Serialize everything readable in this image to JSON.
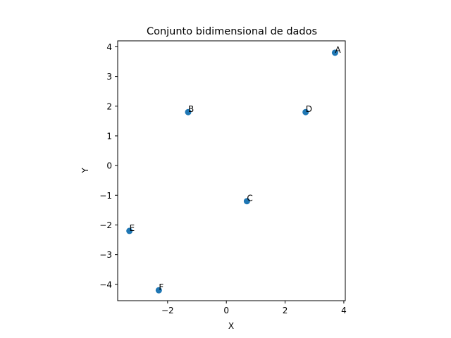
{
  "chart_data": {
    "type": "scatter",
    "title": "Conjunto bidimensional de dados",
    "xlabel": "X",
    "ylabel": "Y",
    "xlim": [
      -3.7,
      4.05
    ],
    "ylim": [
      -4.55,
      4.2
    ],
    "xticks": [
      -2,
      0,
      2,
      4
    ],
    "xtick_labels": [
      "−2",
      "0",
      "2",
      "4"
    ],
    "yticks": [
      -4,
      -3,
      -2,
      -1,
      0,
      1,
      2,
      3,
      4
    ],
    "ytick_labels": [
      "−4",
      "−3",
      "−2",
      "−1",
      "0",
      "1",
      "2",
      "3",
      "4"
    ],
    "grid": false,
    "marker_color": "#1f77b4",
    "points": [
      {
        "label": "A",
        "x": 3.7,
        "y": 3.8
      },
      {
        "label": "B",
        "x": -1.3,
        "y": 1.8
      },
      {
        "label": "C",
        "x": 0.7,
        "y": -1.2
      },
      {
        "label": "D",
        "x": 2.7,
        "y": 1.8
      },
      {
        "label": "E",
        "x": -3.3,
        "y": -2.2
      },
      {
        "label": "F",
        "x": -2.3,
        "y": -4.2
      }
    ]
  }
}
